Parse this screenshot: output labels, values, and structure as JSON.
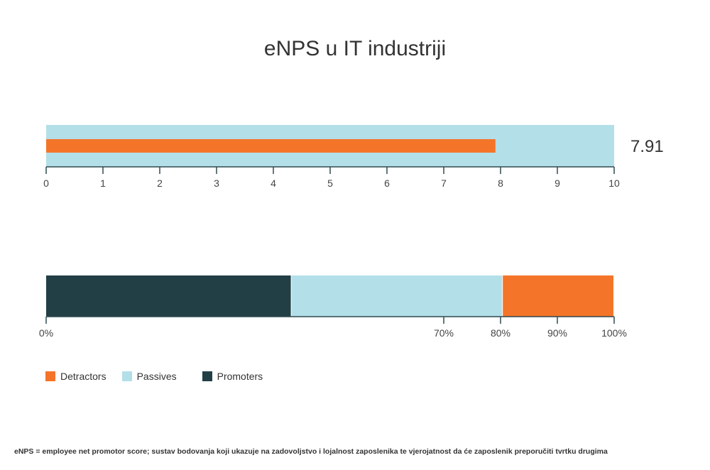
{
  "chart_data": [
    {
      "type": "bar",
      "orientation": "horizontal",
      "title": "eNPS u IT industriji",
      "xlim": [
        0,
        10
      ],
      "ticks": [
        "0",
        "1",
        "2",
        "3",
        "4",
        "5",
        "6",
        "7",
        "8",
        "9",
        "10"
      ],
      "background_value": 10,
      "value": 7.91,
      "value_label": "7.91"
    },
    {
      "type": "bar",
      "orientation": "horizontal",
      "stacked": true,
      "xlim": [
        0,
        100
      ],
      "tick_labels": [
        {
          "value": 0,
          "label": "0%"
        },
        {
          "value": 70,
          "label": "70%"
        },
        {
          "value": 80,
          "label": "80%"
        },
        {
          "value": 90,
          "label": "90%"
        },
        {
          "value": 100,
          "label": "100%"
        }
      ],
      "series": [
        {
          "name": "Promoters",
          "value": 43.2
        },
        {
          "name": "Passives",
          "value": 37.2
        },
        {
          "name": "Detractors",
          "value": 19.6
        }
      ]
    }
  ],
  "legend": [
    {
      "name": "Detractors",
      "color": "#f47529"
    },
    {
      "name": "Passives",
      "color": "#b3dfe9"
    },
    {
      "name": "Promoters",
      "color": "#223f46"
    }
  ],
  "colors": {
    "detractors": "#f47529",
    "passives": "#b3dfe9",
    "promoters": "#223f46",
    "axis": "#2f4a4f"
  },
  "footnote": "eNPS = employee net promotor score; sustav bodovanja koji ukazuje na zadovoljstvo i lojalnost zaposlenika te vjerojatnost da će zaposlenik preporučiti tvrtku drugima"
}
